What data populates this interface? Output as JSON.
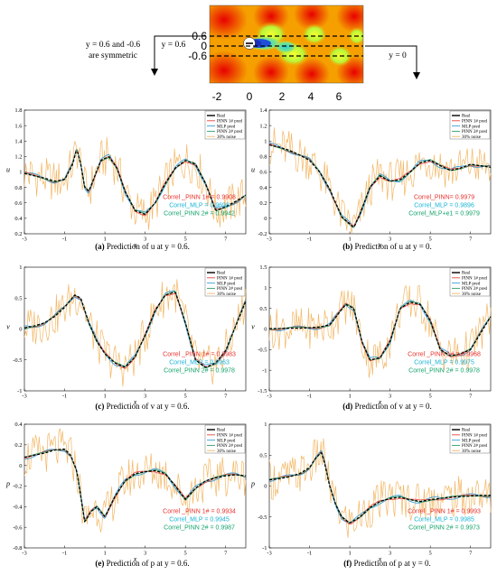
{
  "field": {
    "x_ticks": [
      "-2",
      "0",
      "2",
      "4",
      "6"
    ],
    "y_ticks": [
      "0.6",
      "0",
      "-0.6"
    ],
    "annotation_left_1": "y = 0.6 and -0.6",
    "annotation_left_2": "are symmetric",
    "annotation_mid": "y = 0.6",
    "annotation_right": "y = 0"
  },
  "legend_labels": [
    "Real",
    "PINN 1# pred",
    "MLP pred",
    "PINN 2# pred",
    "30% noise"
  ],
  "colors": {
    "real": "#000000",
    "pinn1": "#e8453c",
    "mlp": "#3aa0d8",
    "pinn2": "#2e9e6b",
    "noise": "#f3b765",
    "corr_pinn1": "#e8302a",
    "corr_mlp": "#18b3d6",
    "corr_pinn2": "#14a36a"
  },
  "chart_data": [
    {
      "type": "line",
      "id": "a",
      "caption_letter": "(a)",
      "caption_rest": "Prediction of u at y = 0.6.",
      "xlabel": "x",
      "ylabel": "u",
      "xlim": [
        -3,
        8
      ],
      "ylim": [
        0.2,
        1.8
      ],
      "xticks": [
        -3,
        -1,
        1,
        3,
        5,
        7
      ],
      "yticks": [
        0.2,
        0.4,
        0.6,
        0.8,
        1,
        1.2,
        1.4,
        1.6,
        1.8
      ],
      "correlations": [
        "Correl _PINN 1# = 0.9908",
        "Correl_MLP = 0.9698",
        "Correl_PINN 2# = 0.9942"
      ],
      "x": [
        -3,
        -2.5,
        -2,
        -1.5,
        -1,
        -0.6,
        -0.4,
        -0.2,
        0,
        0.2,
        0.5,
        0.8,
        1.2,
        1.6,
        2,
        2.5,
        3,
        3.5,
        4,
        4.5,
        5,
        5.5,
        6,
        6.5,
        7,
        7.5,
        8
      ],
      "real": [
        0.98,
        0.95,
        0.92,
        0.88,
        0.9,
        1.1,
        1.3,
        1.1,
        0.8,
        0.75,
        0.95,
        1.15,
        1.2,
        1.05,
        0.75,
        0.5,
        0.45,
        0.6,
        0.85,
        1.05,
        1.15,
        1.1,
        0.85,
        0.5,
        0.55,
        0.62,
        0.7
      ]
    },
    {
      "type": "line",
      "id": "b",
      "caption_letter": "(b)",
      "caption_rest": "Prediction of u at y = 0.",
      "xlabel": "x",
      "ylabel": "u",
      "xlim": [
        -3,
        8
      ],
      "ylim": [
        -0.2,
        1.4
      ],
      "xticks": [
        -3,
        -1,
        1,
        3,
        5,
        7
      ],
      "yticks": [
        -0.2,
        0,
        0.2,
        0.4,
        0.6,
        0.8,
        1,
        1.2,
        1.4
      ],
      "correlations": [
        "Correl_PINN= 0.9979",
        "Correl_MLP = 0.9896",
        "Correl_MLP+e1 = 0.9979"
      ],
      "x": [
        -3,
        -2.5,
        -2,
        -1.5,
        -1,
        -0.5,
        0,
        0.3,
        0.6,
        0.9,
        1.2,
        1.5,
        2,
        2.5,
        3,
        3.5,
        4,
        4.5,
        5,
        5.5,
        6,
        6.5,
        7,
        7.5,
        8
      ],
      "real": [
        0.95,
        0.92,
        0.88,
        0.82,
        0.75,
        0.6,
        0.38,
        0.2,
        0.02,
        -0.05,
        -0.12,
        0.05,
        0.4,
        0.55,
        0.48,
        0.5,
        0.6,
        0.72,
        0.75,
        0.68,
        0.62,
        0.65,
        0.7,
        0.68,
        0.66
      ]
    },
    {
      "type": "line",
      "id": "c",
      "caption_letter": "(c)",
      "caption_rest": "Prediction of v at y = 0.6.",
      "xlabel": "x",
      "ylabel": "v",
      "xlim": [
        -3,
        8
      ],
      "ylim": [
        -1,
        1
      ],
      "xticks": [
        -3,
        -1,
        1,
        3,
        5,
        7
      ],
      "yticks": [
        -1,
        -0.5,
        0,
        0.5,
        1
      ],
      "correlations": [
        "Correl _PINN 1# = 0.9983",
        "Correl_MLP = 0.9963",
        "Correl_PINN 2# = 0.9978"
      ],
      "x": [
        -3,
        -2.5,
        -2,
        -1.5,
        -1,
        -0.5,
        -0.2,
        0.2,
        0.6,
        1,
        1.5,
        2,
        2.5,
        3,
        3.5,
        4,
        4.5,
        5,
        5.5,
        6,
        6.5,
        7,
        7.5,
        8
      ],
      "real": [
        0.02,
        0.05,
        0.1,
        0.2,
        0.35,
        0.55,
        0.5,
        0.1,
        -0.2,
        -0.4,
        -0.55,
        -0.62,
        -0.45,
        -0.1,
        0.3,
        0.55,
        0.6,
        0.1,
        -0.5,
        -0.62,
        -0.55,
        -0.35,
        0.05,
        0.45
      ]
    },
    {
      "type": "line",
      "id": "d",
      "caption_letter": "(d)",
      "caption_rest": "Prediction of v at y = 0.",
      "xlabel": "x",
      "ylabel": "v",
      "xlim": [
        -3,
        8
      ],
      "ylim": [
        -1.5,
        1.5
      ],
      "xticks": [
        -3,
        -1,
        1,
        3,
        5,
        7
      ],
      "yticks": [
        -1.5,
        -1,
        -0.5,
        0,
        0.5,
        1,
        1.5
      ],
      "correlations": [
        "Correl _PINN 1# = 0.9968",
        "Correl_MLP = 0.9975",
        "Correl_PINN 2# = 0.9978"
      ],
      "x": [
        -3,
        -2.5,
        -2,
        -1.5,
        -1,
        -0.5,
        0,
        0.4,
        0.8,
        1.2,
        1.6,
        2,
        2.5,
        3,
        3.5,
        4,
        4.5,
        5,
        5.5,
        6,
        6.5,
        7,
        7.5,
        8
      ],
      "real": [
        0.01,
        0.01,
        0.02,
        0.02,
        0.03,
        0.05,
        0.1,
        0.35,
        0.6,
        0.5,
        -0.3,
        -0.75,
        -0.7,
        -0.3,
        0.5,
        0.65,
        0.6,
        0.2,
        -0.5,
        -0.65,
        -0.6,
        -0.5,
        -0.1,
        0.3
      ]
    },
    {
      "type": "line",
      "id": "e",
      "caption_letter": "(e)",
      "caption_rest": "Prediction of p at y = 0.6.",
      "xlabel": "x",
      "ylabel": "p",
      "xlim": [
        -3,
        8
      ],
      "ylim": [
        -0.8,
        0.4
      ],
      "xticks": [
        -3,
        -1,
        1,
        3,
        5,
        7
      ],
      "yticks": [
        -0.8,
        -0.6,
        -0.4,
        -0.2,
        0,
        0.2,
        0.4
      ],
      "correlations": [
        "Correl _PINN 1# = 0.9934",
        "Correl_MLP = 0.9945",
        "Correl_PINN 2# = 0.9987"
      ],
      "x": [
        -3,
        -2.5,
        -2,
        -1.5,
        -1,
        -0.7,
        -0.4,
        -0.2,
        0,
        0.3,
        0.6,
        1,
        1.5,
        2,
        2.5,
        3,
        3.5,
        4,
        4.5,
        5,
        5.5,
        6,
        6.5,
        7,
        7.5,
        8
      ],
      "real": [
        0.08,
        0.1,
        0.12,
        0.15,
        0.16,
        0.1,
        -0.05,
        -0.3,
        -0.55,
        -0.45,
        -0.4,
        -0.5,
        -0.3,
        -0.15,
        -0.08,
        -0.06,
        -0.05,
        -0.08,
        -0.2,
        -0.33,
        -0.22,
        -0.15,
        -0.12,
        -0.1,
        -0.09,
        -0.1
      ]
    },
    {
      "type": "line",
      "id": "f",
      "caption_letter": "(f)",
      "caption_rest": "Prediction of p at y = 0.",
      "xlabel": "x",
      "ylabel": "p",
      "xlim": [
        -3,
        8
      ],
      "ylim": [
        -1,
        1
      ],
      "xticks": [
        -3,
        -1,
        1,
        3,
        5,
        7
      ],
      "yticks": [
        -1,
        -0.5,
        0,
        0.5,
        1
      ],
      "correlations": [
        "Correl _PINN 1# = 0.9993",
        "Correl_MLP = 0.9985",
        "Correl_PINN 2# = 0.9973"
      ],
      "x": [
        -3,
        -2.5,
        -2,
        -1.5,
        -1,
        -0.7,
        -0.4,
        -0.2,
        0,
        0.3,
        0.6,
        1,
        1.5,
        2,
        2.5,
        3,
        3.5,
        4,
        4.5,
        5,
        5.5,
        6,
        6.5,
        7,
        7.5,
        8
      ],
      "real": [
        0.1,
        0.12,
        0.15,
        0.2,
        0.3,
        0.45,
        0.55,
        0.3,
        0.0,
        -0.3,
        -0.5,
        -0.6,
        -0.5,
        -0.35,
        -0.25,
        -0.2,
        -0.18,
        -0.22,
        -0.25,
        -0.22,
        -0.2,
        -0.18,
        -0.17,
        -0.16,
        -0.15,
        -0.15
      ]
    }
  ]
}
